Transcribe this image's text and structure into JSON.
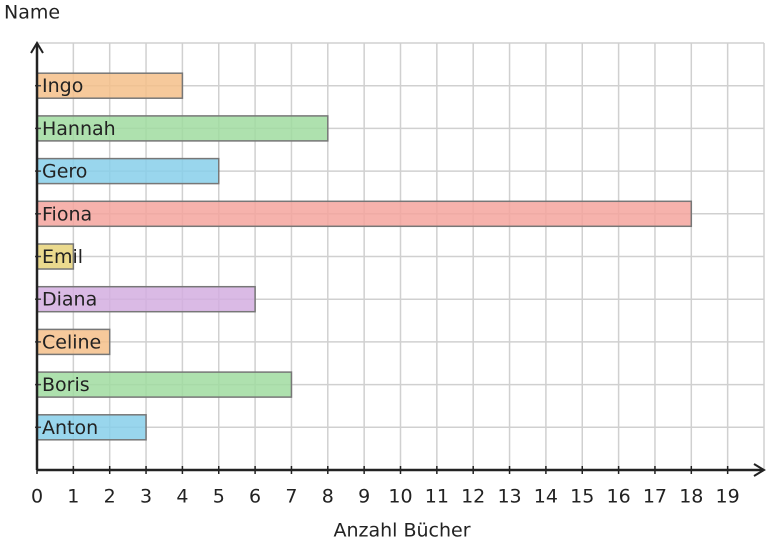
{
  "chart_data": {
    "type": "bar",
    "orientation": "horizontal",
    "y_label": "Name",
    "x_label": "Anzahl Bücher",
    "categories": [
      "Anton",
      "Boris",
      "Celine",
      "Diana",
      "Emil",
      "Fiona",
      "Gero",
      "Hannah",
      "Ingo"
    ],
    "values": [
      3,
      7,
      2,
      6,
      1,
      18,
      5,
      8,
      4
    ],
    "colors": [
      "#87cfea",
      "#a0dca0",
      "#f5c08a",
      "#d4aee0",
      "#e8d47a",
      "#f4a49e",
      "#87cfea",
      "#a0dca0",
      "#f5c08a"
    ],
    "xlim": [
      0,
      20
    ],
    "xticks": [
      0,
      1,
      2,
      3,
      4,
      5,
      6,
      7,
      8,
      9,
      10,
      11,
      12,
      13,
      14,
      15,
      16,
      17,
      18,
      19
    ],
    "grid": true
  }
}
